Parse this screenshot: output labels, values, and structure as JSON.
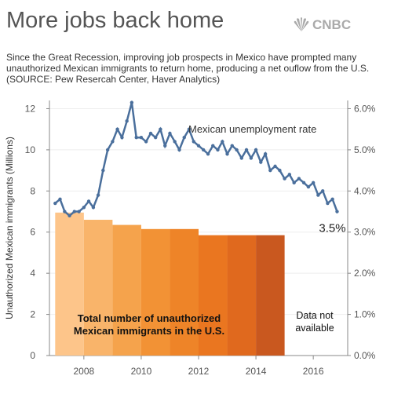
{
  "header": {
    "title": "More jobs back home",
    "logo": "CNBC",
    "subtitle": "Since the Great Recession, improving job prospects in Mexico have prompted many unauthorized Mexican immigrants to return home, producing a net ouflow from the U.S. (SOURCE: Pew Resercah Center, Haver Analytics)"
  },
  "chart_data": {
    "type": "bar",
    "ylabel": "Unauthorized Mexican immigrants (Millions)",
    "xlim": [
      2006.8,
      2017.2
    ],
    "xticks": [
      2008,
      2010,
      2012,
      2014,
      2016
    ],
    "ylim": [
      0,
      12.4
    ],
    "yticks": [
      0,
      2,
      4,
      6,
      8,
      10,
      12
    ],
    "y2lim": [
      0,
      6.2
    ],
    "y2ticks": [
      {
        "value": 0,
        "label": "0.0%"
      },
      {
        "value": 1,
        "label": "1.0%"
      },
      {
        "value": 2,
        "label": "2.0%"
      },
      {
        "value": 3,
        "label": "3.0%"
      },
      {
        "value": 4,
        "label": "4.0%"
      },
      {
        "value": 5,
        "label": "5.0%"
      },
      {
        "value": 6,
        "label": "6.0%"
      }
    ],
    "bar_x": [
      2007,
      2008,
      2009,
      2010,
      2011,
      2012,
      2013,
      2014
    ],
    "series": [
      {
        "type": "bar",
        "values": [
          6.95,
          6.6,
          6.35,
          6.15,
          6.15,
          5.85,
          5.85,
          5.85
        ],
        "colors": [
          "#fdc58a",
          "#f9b46a",
          "#f5a34c",
          "#f29235",
          "#ee8428",
          "#ea7620",
          "#e0691e",
          "#c9581f"
        ]
      },
      {
        "type": "line",
        "axis": "y2",
        "name": "Mexican unemployment rate",
        "color": "#4a6f9c",
        "x": [
          2007,
          2007.17,
          2007.33,
          2007.5,
          2007.67,
          2007.83,
          2008,
          2008.17,
          2008.33,
          2008.5,
          2008.67,
          2008.83,
          2009,
          2009.17,
          2009.33,
          2009.5,
          2009.67,
          2009.83,
          2010,
          2010.17,
          2010.33,
          2010.5,
          2010.67,
          2010.83,
          2011,
          2011.17,
          2011.33,
          2011.5,
          2011.67,
          2011.83,
          2012,
          2012.17,
          2012.33,
          2012.5,
          2012.67,
          2012.83,
          2013,
          2013.17,
          2013.33,
          2013.5,
          2013.67,
          2013.83,
          2014,
          2014.17,
          2014.33,
          2014.5,
          2014.67,
          2014.83,
          2015,
          2015.17,
          2015.33,
          2015.5,
          2015.67,
          2015.83,
          2016,
          2016.17,
          2016.33,
          2016.5,
          2016.67,
          2016.83
        ],
        "values": [
          3.7,
          3.8,
          3.5,
          3.4,
          3.5,
          3.5,
          3.6,
          3.75,
          3.6,
          3.9,
          4.5,
          5.0,
          5.2,
          5.5,
          5.3,
          5.7,
          6.15,
          5.3,
          5.3,
          5.2,
          5.4,
          5.3,
          5.5,
          5.1,
          5.4,
          5.2,
          5.0,
          5.3,
          5.5,
          5.2,
          5.1,
          5.0,
          4.9,
          5.1,
          5.0,
          5.2,
          4.9,
          5.1,
          5.0,
          4.8,
          5.0,
          4.8,
          5.0,
          4.7,
          4.9,
          4.5,
          4.6,
          4.5,
          4.3,
          4.4,
          4.2,
          4.3,
          4.2,
          4.1,
          4.2,
          3.9,
          4.0,
          3.7,
          3.8,
          3.5
        ],
        "value_labels": [
          null,
          null,
          null,
          null,
          null,
          null,
          null,
          null,
          null,
          null,
          null,
          null,
          null,
          null,
          null,
          null,
          null,
          null,
          null,
          null,
          null,
          null,
          null,
          null,
          null,
          null,
          null,
          null,
          null,
          null,
          null,
          null,
          null,
          null,
          null,
          null,
          null,
          null,
          null,
          null,
          null,
          null,
          null,
          null,
          null,
          null,
          null,
          null,
          null,
          null,
          null,
          null,
          null,
          null,
          null,
          null,
          null,
          null,
          null,
          "3.5%"
        ]
      }
    ],
    "annotations": [
      {
        "lines": [
          "Total number of unauthorized",
          "Mexican immigrants in the U.S."
        ]
      },
      {
        "lines": [
          "Data not",
          "available"
        ]
      }
    ]
  }
}
